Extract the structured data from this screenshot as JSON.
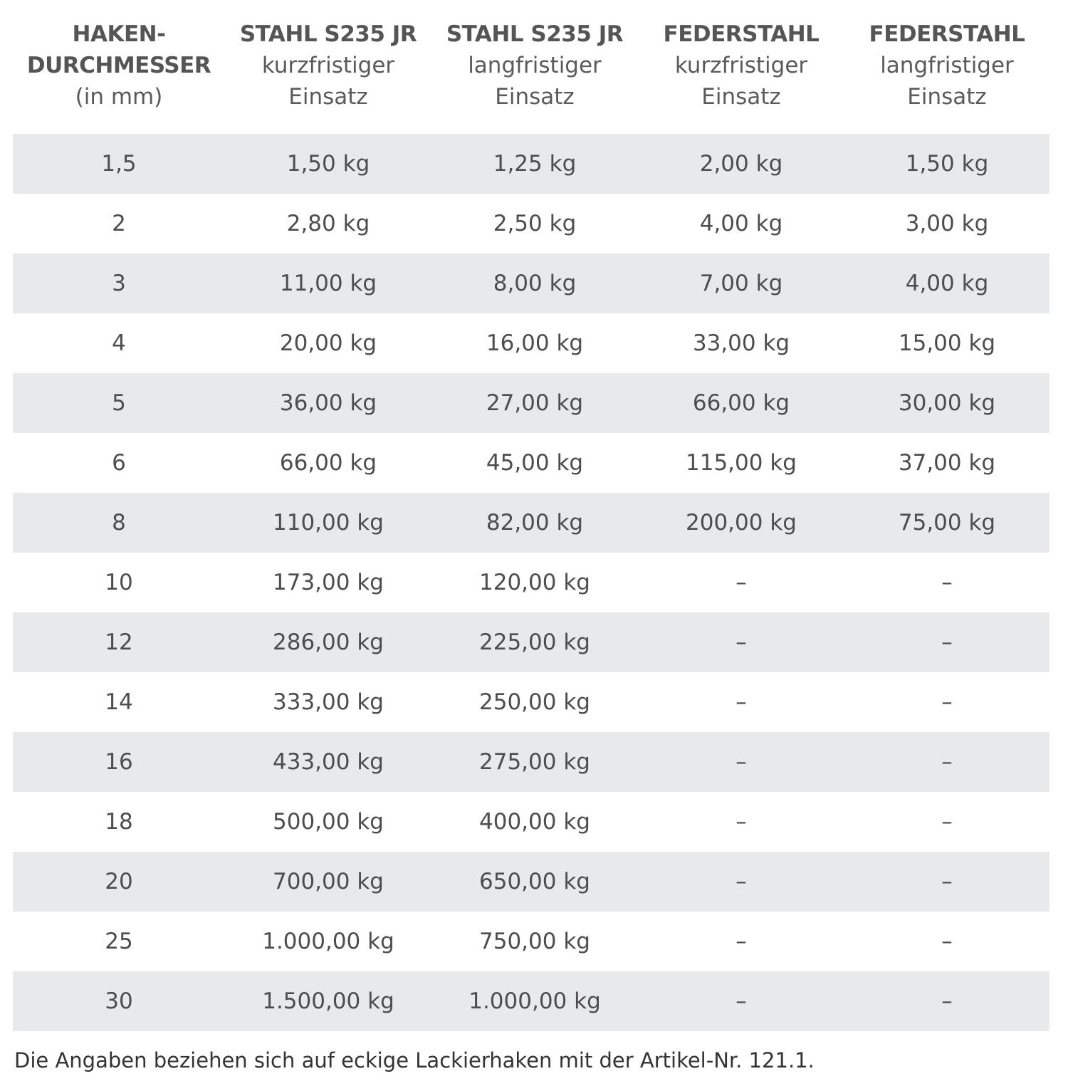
{
  "headers": [
    {
      "bold_lines": [
        "HAKEN-",
        "DURCHMESSER"
      ],
      "sub_lines": [
        "(in mm)"
      ]
    },
    {
      "bold_lines": [
        "STAHL S235 JR"
      ],
      "sub_lines": [
        "kurzfristiger",
        "Einsatz"
      ]
    },
    {
      "bold_lines": [
        "STAHL S235 JR"
      ],
      "sub_lines": [
        "langfristiger",
        "Einsatz"
      ]
    },
    {
      "bold_lines": [
        "FEDERSTAHL"
      ],
      "sub_lines": [
        "kurzfristiger",
        "Einsatz"
      ]
    },
    {
      "bold_lines": [
        "FEDERSTAHL"
      ],
      "sub_lines": [
        "langfristiger",
        "Einsatz"
      ]
    }
  ],
  "rows": [
    [
      "1,5",
      "1,50 kg",
      "1,25 kg",
      "2,00 kg",
      "1,50 kg"
    ],
    [
      "2",
      "2,80 kg",
      "2,50 kg",
      "4,00 kg",
      "3,00 kg"
    ],
    [
      "3",
      "11,00 kg",
      "8,00 kg",
      "7,00 kg",
      "4,00 kg"
    ],
    [
      "4",
      "20,00 kg",
      "16,00 kg",
      "33,00 kg",
      "15,00 kg"
    ],
    [
      "5",
      "36,00 kg",
      "27,00 kg",
      "66,00 kg",
      "30,00 kg"
    ],
    [
      "6",
      "66,00 kg",
      "45,00 kg",
      "115,00 kg",
      "37,00 kg"
    ],
    [
      "8",
      "110,00 kg",
      "82,00 kg",
      "200,00 kg",
      "75,00 kg"
    ],
    [
      "10",
      "173,00 kg",
      "120,00 kg",
      "–",
      "–"
    ],
    [
      "12",
      "286,00 kg",
      "225,00 kg",
      "–",
      "–"
    ],
    [
      "14",
      "333,00 kg",
      "250,00 kg",
      "–",
      "–"
    ],
    [
      "16",
      "433,00 kg",
      "275,00 kg",
      "–",
      "–"
    ],
    [
      "18",
      "500,00 kg",
      "400,00 kg",
      "–",
      "–"
    ],
    [
      "20",
      "700,00 kg",
      "650,00 kg",
      "–",
      "–"
    ],
    [
      "25",
      "1.000,00 kg",
      "750,00 kg",
      "–",
      "–"
    ],
    [
      "30",
      "1.500,00 kg",
      "1.000,00 kg",
      "–",
      "–"
    ]
  ],
  "colors": {
    "row_shade": "#e8e9eb",
    "text": "#4d4d4d"
  },
  "footnote": "Die Angaben beziehen sich auf eckige Lackierhaken mit der Artikel-Nr. 121.1."
}
